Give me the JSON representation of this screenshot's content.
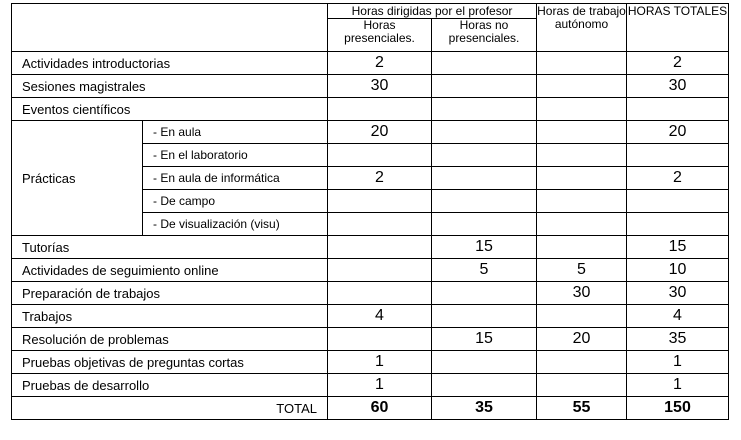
{
  "header": {
    "group_label": "Horas dirigidas por el profesor",
    "presenciales": "Horas presenciales.",
    "no_presenciales": "Horas no presenciales.",
    "autonomo": "Horas de trabajo autónomo",
    "totales": "HORAS TOTALES"
  },
  "rows": [
    {
      "label": "Actividades introductorias",
      "pres": "2",
      "nopres": "",
      "auto": "",
      "total": "2"
    },
    {
      "label": "Sesiones magistrales",
      "pres": "30",
      "nopres": "",
      "auto": "",
      "total": "30"
    },
    {
      "label": "Eventos científicos",
      "pres": "",
      "nopres": "",
      "auto": "",
      "total": ""
    },
    {
      "label": "Tutorías",
      "pres": "",
      "nopres": "15",
      "auto": "",
      "total": "15"
    },
    {
      "label": "Actividades de seguimiento online",
      "pres": "",
      "nopres": "5",
      "auto": "5",
      "total": "10"
    },
    {
      "label": "Preparación de trabajos",
      "pres": "",
      "nopres": "",
      "auto": "30",
      "total": "30"
    },
    {
      "label": "Trabajos",
      "pres": "4",
      "nopres": "",
      "auto": "",
      "total": "4"
    },
    {
      "label": "Resolución de problemas",
      "pres": "",
      "nopres": "15",
      "auto": "20",
      "total": "35"
    },
    {
      "label": "Pruebas objetivas de preguntas cortas",
      "pres": "1",
      "nopres": "",
      "auto": "",
      "total": "1"
    },
    {
      "label": "Pruebas de desarrollo",
      "pres": "1",
      "nopres": "",
      "auto": "",
      "total": "1"
    }
  ],
  "practicas": {
    "label": "Prácticas",
    "subrows": [
      {
        "label": "- En aula",
        "pres": "20",
        "nopres": "",
        "auto": "",
        "total": "20"
      },
      {
        "label": "- En el laboratorio",
        "pres": "",
        "nopres": "",
        "auto": "",
        "total": ""
      },
      {
        "label": "- En aula de informática",
        "pres": "2",
        "nopres": "",
        "auto": "",
        "total": "2"
      },
      {
        "label": "- De campo",
        "pres": "",
        "nopres": "",
        "auto": "",
        "total": ""
      },
      {
        "label": "- De visualización (visu)",
        "pres": "",
        "nopres": "",
        "auto": "",
        "total": ""
      }
    ]
  },
  "totals": {
    "label": "TOTAL",
    "pres": "60",
    "nopres": "35",
    "auto": "55",
    "total": "150"
  }
}
